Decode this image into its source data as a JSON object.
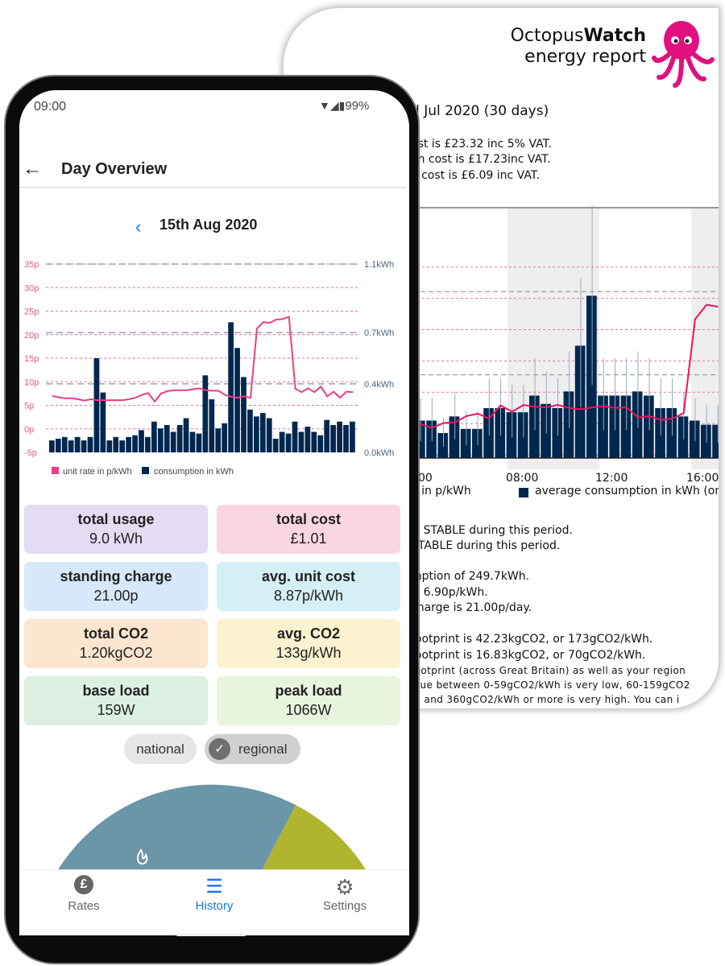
{
  "report": {
    "logo": {
      "brand_light": "Octopus",
      "brand_bold": "Watch",
      "subtitle": "energy report"
    },
    "period": "d Jul  2020 (30 days)",
    "cost_lines": [
      "ost is £23.32 inc 5% VAT.",
      "on cost is £17.23inc VAT.",
      "e cost is £6.09 inc VAT."
    ],
    "legend": {
      "rate": "e in p/kWh",
      "consumption": "average consumption in kWh (one "
    },
    "trend_lines": [
      "is STABLE  during this period.",
      "STABLE  during this period."
    ],
    "summary_lines": [
      "mption of 249.7kWh.",
      "is 6.90p/kWh.",
      "charge is 21.00p/day."
    ],
    "carbon_lines": [
      "footprint is 42.23kgCO2, or 173gCO2/kWh.",
      "footprint is 16.83kgCO2, or 70gCO2/kWh."
    ],
    "small_lines": [
      "footprint (across Great Britain) as well as your region",
      "alue between 0-59gCO2/kWh is very low, 60-159gCO2",
      "h, and 360gCO2/kWh or more is very high. You can i"
    ],
    "colors": {
      "rate": "#f0115f",
      "bars": "#00274f",
      "shade": "#eeeeee",
      "brand": "#e0117f"
    }
  },
  "phone": {
    "status": {
      "time": "09:00",
      "battery": "99%"
    },
    "title": "Day Overview",
    "date": "15th  Aug 2020",
    "cards": [
      {
        "title": "total usage",
        "value": "9.0 kWh",
        "color": "#e4dcf2"
      },
      {
        "title": "total cost",
        "value": "£1.01",
        "color": "#f9d6e2"
      },
      {
        "title": "standing charge",
        "value": "21.00p",
        "color": "#d6e8fa"
      },
      {
        "title": "avg. unit cost",
        "value": "8.87p/kWh",
        "color": "#d4f0f5"
      },
      {
        "title": "total CO2",
        "value": "1.20kgCO2",
        "color": "#fde6cf"
      },
      {
        "title": "avg. CO2",
        "value": "133g/kWh",
        "color": "#fdf2cf"
      },
      {
        "title": "base load",
        "value": "159W",
        "color": "#dcefe2"
      },
      {
        "title": "peak load",
        "value": "1066W",
        "color": "#e9f4dd"
      }
    ],
    "chips": {
      "national": "national",
      "regional": "regional",
      "selected": "regional"
    },
    "gauge": {
      "colors": [
        "#6b95a8",
        "#b1b42e"
      ]
    },
    "nav": [
      {
        "label": "Rates",
        "icon": "pound-icon",
        "active": false
      },
      {
        "label": "History",
        "icon": "history-icon",
        "active": true
      },
      {
        "label": "Settings",
        "icon": "gear-icon",
        "active": false
      }
    ],
    "accent": "#1a73e8"
  },
  "chart_data": [
    {
      "type": "bar+line",
      "y_left": {
        "ticks": [
          "35p",
          "30p",
          "25p",
          "20p",
          "15p",
          "10p",
          "5p",
          "0p",
          "-5p"
        ],
        "range": [
          -5,
          35
        ],
        "unit": "p/kWh"
      },
      "y_right": {
        "ticks": [
          "1.1kWh",
          "0.7kWh",
          "0.4kWh",
          "0.0kWh"
        ],
        "range": [
          0,
          1.1
        ],
        "unit": "kWh"
      },
      "legend": [
        "unit rate in p/kWh",
        "consumption in kWh"
      ],
      "consumption": [
        0.07,
        0.08,
        0.09,
        0.07,
        0.09,
        0.07,
        0.09,
        0.55,
        0.35,
        0.07,
        0.09,
        0.07,
        0.09,
        0.1,
        0.13,
        0.09,
        0.18,
        0.14,
        0.16,
        0.12,
        0.16,
        0.2,
        0.12,
        0.11,
        0.45,
        0.31,
        0.14,
        0.17,
        0.76,
        0.61,
        0.44,
        0.25,
        0.21,
        0.23,
        0.2,
        0.08,
        0.12,
        0.11,
        0.18,
        0.12,
        0.15,
        0.12,
        0.1,
        0.19,
        0.16,
        0.18,
        0.16,
        0.18
      ],
      "unit_rate": [
        7.0,
        6.7,
        6.5,
        6.5,
        6.3,
        6.0,
        6.3,
        6.1,
        6.1,
        6.1,
        6.1,
        6.1,
        6.3,
        6.6,
        7.2,
        7.6,
        5.8,
        7.5,
        8.0,
        8.2,
        8.2,
        8.2,
        8.4,
        8.6,
        8.2,
        8.1,
        8.1,
        7.2,
        6.8,
        6.6,
        6.9,
        6.6,
        21.3,
        22.7,
        22.5,
        23.2,
        23.3,
        23.8,
        8.5,
        7.8,
        8.6,
        7.8,
        9.0,
        6.9,
        7.9,
        6.6,
        7.9,
        7.8
      ]
    },
    {
      "type": "bar+line",
      "x_ticks": [
        "00",
        "08:00",
        "12:00",
        "16:00"
      ],
      "avg_consumption": [
        0.09,
        0.09,
        0.06,
        0.1,
        0.07,
        0.07,
        0.12,
        0.12,
        0.11,
        0.11,
        0.15,
        0.13,
        0.12,
        0.16,
        0.27,
        0.39,
        0.15,
        0.15,
        0.15,
        0.16,
        0.15,
        0.12,
        0.12,
        0.1,
        0.09,
        0.08,
        0.08
      ],
      "unit_rate": [
        5.4,
        4.8,
        5.6,
        5.7,
        6.7,
        7.1,
        6.3,
        8.4,
        7.4,
        8.5,
        8.2,
        8.1,
        8.5,
        8.0,
        7.8,
        8.1,
        8.3,
        8.0,
        8.1,
        6.5,
        6.7,
        6.1,
        6.3,
        7.2,
        22.2,
        24.5,
        24.2
      ]
    }
  ]
}
